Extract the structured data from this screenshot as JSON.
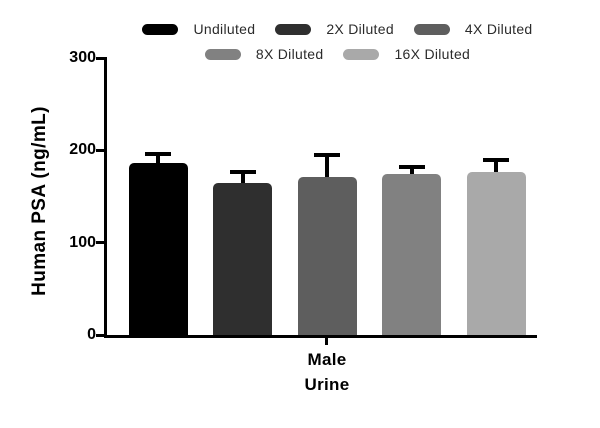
{
  "chart_data": {
    "type": "bar",
    "ylabel": "Human PSA (ng/mL)",
    "xlabel_lines": [
      "Male",
      "Urine"
    ],
    "categories": [
      "Undiluted",
      "2X Diluted",
      "4X Diluted",
      "8X Diluted",
      "16X Diluted"
    ],
    "values": [
      186,
      165,
      171,
      174,
      177
    ],
    "errors_plus": [
      10,
      11,
      24,
      8,
      13
    ],
    "bar_colors": [
      "#000000",
      "#2f2f2f",
      "#5e5e5e",
      "#818181",
      "#a9a9a9"
    ],
    "ylim": [
      0,
      300
    ],
    "yticks": [
      0,
      100,
      200,
      300
    ],
    "grid": false,
    "legend_position": "top",
    "legend_rows": [
      [
        0,
        1,
        2
      ],
      [
        3,
        4
      ]
    ],
    "error_bar_style": "upper-only-with-cap",
    "axis_color": "#000000",
    "background_color": "#ffffff"
  }
}
